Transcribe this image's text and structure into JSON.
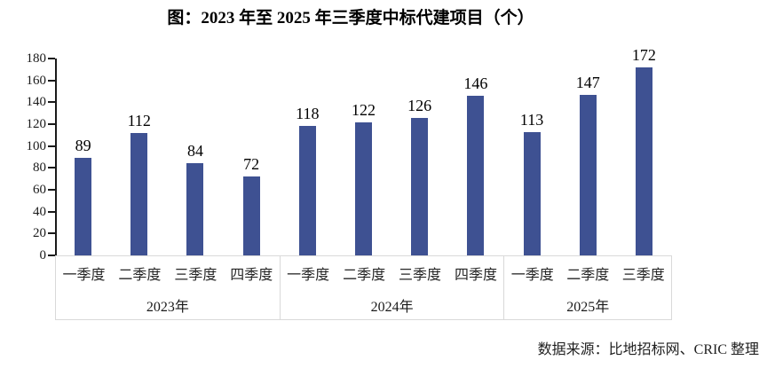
{
  "title": "图：2023 年至 2025 年三季度中标代建项目（个）",
  "source": "数据来源：比地招标网、CRIC 整理",
  "colors": {
    "bar": "#3e5192",
    "axis": "#1a1a1a",
    "category_box_line": "#d9d9d9",
    "text": "#000000"
  },
  "chart_data": {
    "type": "bar",
    "title": "图：2023 年至 2025 年三季度中标代建项目（个）",
    "xlabel": "",
    "ylabel": "",
    "ylim": [
      0,
      180
    ],
    "ytick_step": 20,
    "yticks": [
      0,
      20,
      40,
      60,
      80,
      100,
      120,
      140,
      160,
      180
    ],
    "grid": false,
    "legend": "none",
    "data_labels": true,
    "groups": [
      {
        "year": "2023年",
        "quarters": [
          "一季度",
          "二季度",
          "三季度",
          "四季度"
        ],
        "values": [
          89,
          112,
          84,
          72
        ]
      },
      {
        "year": "2024年",
        "quarters": [
          "一季度",
          "二季度",
          "三季度",
          "四季度"
        ],
        "values": [
          118,
          122,
          126,
          146
        ]
      },
      {
        "year": "2025年",
        "quarters": [
          "一季度",
          "二季度",
          "三季度"
        ],
        "values": [
          113,
          147,
          172
        ]
      }
    ],
    "values_flat": [
      89,
      112,
      84,
      72,
      118,
      122,
      126,
      146,
      113,
      147,
      172
    ]
  }
}
